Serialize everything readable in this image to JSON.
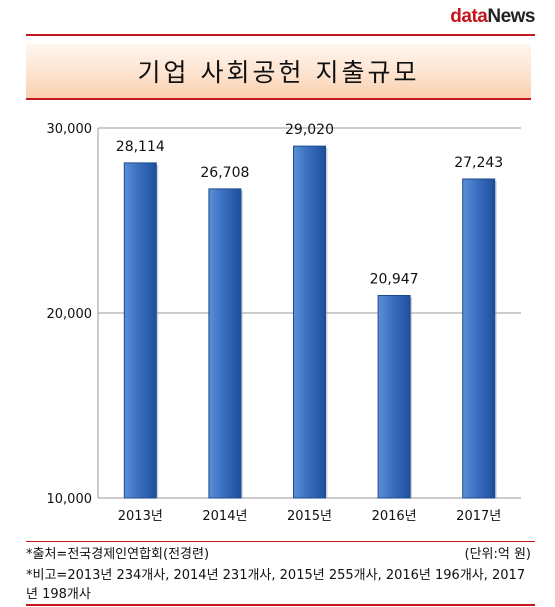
{
  "brand": {
    "prefix": "data",
    "suffix": "News"
  },
  "title": "기업 사회공헌 지출규모",
  "chart_data": {
    "type": "bar",
    "title": "기업 사회공헌 지출규모",
    "categories": [
      "2013년",
      "2014년",
      "2015년",
      "2016년",
      "2017년"
    ],
    "values": [
      28114,
      26708,
      29020,
      20947,
      27243
    ],
    "value_labels": [
      "28,114",
      "26,708",
      "29,020",
      "20,947",
      "27,243"
    ],
    "ylim": [
      10000,
      30000
    ],
    "yticks": [
      10000,
      20000,
      30000
    ],
    "ytick_labels": [
      "10,000",
      "20,000",
      "30,000"
    ],
    "grid": true,
    "bar_color": "#3a6fc0"
  },
  "footer": {
    "source": "*출처=전국경제인연합회(전경련)",
    "unit": "(단위:억 원)",
    "note": "*비고=2013년 234개사, 2014년 231개사, 2015년 255개사, 2016년 196개사, 2017년 198개사"
  }
}
